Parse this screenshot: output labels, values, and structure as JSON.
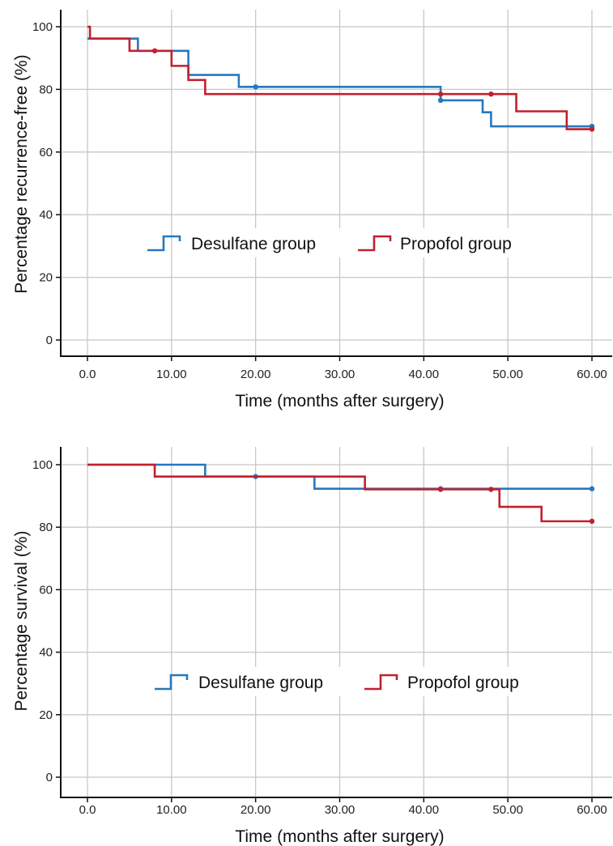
{
  "chart_data": [
    {
      "type": "line",
      "step": true,
      "title": "",
      "xlabel": "Time (months after surgery)",
      "ylabel": "Percentage recurrence-free  (%)",
      "xlim": [
        0,
        60
      ],
      "ylim": [
        0,
        100
      ],
      "x_ticks": [
        "0.0",
        "10.00",
        "20.00",
        "30.00",
        "40.00",
        "50.00",
        "60.00"
      ],
      "y_ticks": [
        "0",
        "20",
        "40",
        "60",
        "80",
        "100"
      ],
      "grid": true,
      "legend_position": "center",
      "series": [
        {
          "name": "Desulfane group",
          "color": "#2778bd",
          "x": [
            0,
            6,
            12,
            18,
            42,
            47,
            48,
            60
          ],
          "y": [
            96.2,
            92.3,
            84.6,
            80.8,
            76.5,
            72.7,
            68.2,
            68.2
          ],
          "censored": [
            [
              20,
              80.8
            ],
            [
              42,
              76.5
            ],
            [
              60,
              68.2
            ]
          ]
        },
        {
          "name": "Propofol group",
          "color": "#c1202e",
          "x": [
            0,
            0.3,
            5,
            10,
            12,
            14,
            51,
            57,
            60
          ],
          "y": [
            100,
            96.2,
            92.3,
            87.5,
            83.0,
            78.5,
            73.0,
            67.3,
            67.3
          ],
          "censored": [
            [
              8,
              92.3
            ],
            [
              42,
              78.5
            ],
            [
              48,
              78.5
            ],
            [
              60,
              67.3
            ]
          ]
        }
      ]
    },
    {
      "type": "line",
      "step": true,
      "title": "",
      "xlabel": "Time (months after surgery)",
      "ylabel": "Percentage survival  (%)",
      "xlim": [
        0,
        60
      ],
      "ylim": [
        0,
        100
      ],
      "x_ticks": [
        "0.0",
        "10.00",
        "20.00",
        "30.00",
        "40.00",
        "50.00",
        "60.00"
      ],
      "y_ticks": [
        "0",
        "20",
        "40",
        "60",
        "80",
        "100"
      ],
      "grid": true,
      "legend_position": "center",
      "series": [
        {
          "name": "Desulfane group",
          "color": "#2778bd",
          "x": [
            0,
            14,
            27,
            60
          ],
          "y": [
            100,
            96.2,
            92.3,
            92.3
          ],
          "censored": [
            [
              20,
              96.2
            ],
            [
              42,
              92.3
            ],
            [
              60,
              92.3
            ]
          ]
        },
        {
          "name": "Propofol group",
          "color": "#c1202e",
          "x": [
            0,
            8,
            33,
            49,
            54,
            60
          ],
          "y": [
            100,
            96.2,
            92.1,
            86.5,
            81.9,
            81.9
          ],
          "censored": [
            [
              42,
              92.1
            ],
            [
              48,
              92.1
            ],
            [
              60,
              81.9
            ]
          ]
        }
      ]
    }
  ]
}
